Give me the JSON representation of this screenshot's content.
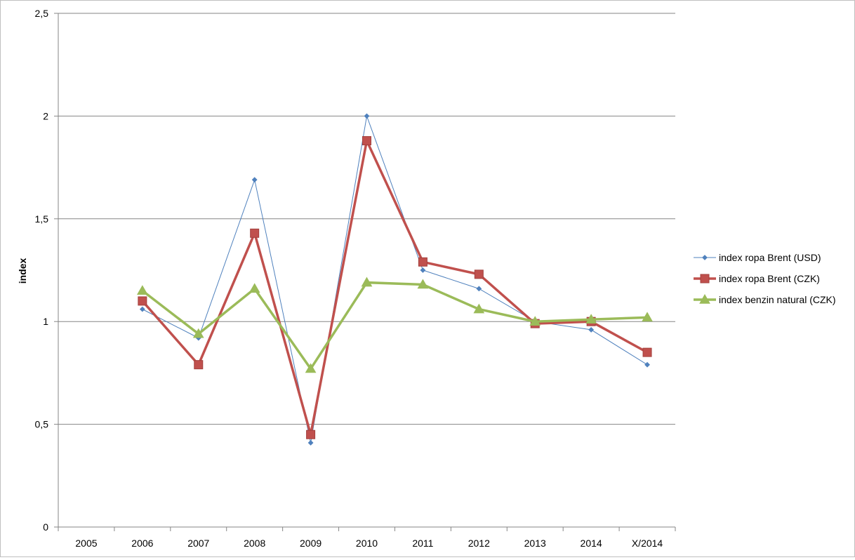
{
  "chart_data": {
    "type": "line",
    "title": "",
    "xlabel": "",
    "ylabel": "index",
    "ylim": [
      0,
      2.5
    ],
    "y_ticks": [
      {
        "value": 0,
        "label": "0"
      },
      {
        "value": 0.5,
        "label": "0,5"
      },
      {
        "value": 1,
        "label": "1"
      },
      {
        "value": 1.5,
        "label": "1,5"
      },
      {
        "value": 2,
        "label": "2"
      },
      {
        "value": 2.5,
        "label": "2,5"
      }
    ],
    "grid": true,
    "legend_position": "right",
    "categories": [
      "2005",
      "2006",
      "2007",
      "2008",
      "2009",
      "2010",
      "2011",
      "2012",
      "2013",
      "2014",
      "X/2014"
    ],
    "series": [
      {
        "name": "index ropa Brent (USD)",
        "color": "#4f81bd",
        "marker": "diamond",
        "values": [
          null,
          1.06,
          0.92,
          1.69,
          0.41,
          2.0,
          1.25,
          1.16,
          1.0,
          0.96,
          0.79
        ]
      },
      {
        "name": "index ropa Brent (CZK)",
        "color": "#c0504d",
        "marker": "square",
        "values": [
          null,
          1.1,
          0.79,
          1.43,
          0.45,
          1.88,
          1.29,
          1.23,
          0.99,
          1.0,
          0.85
        ]
      },
      {
        "name": "index benzin natural (CZK)",
        "color": "#9bbb59",
        "marker": "triangle",
        "values": [
          null,
          1.15,
          0.94,
          1.16,
          0.77,
          1.19,
          1.18,
          1.06,
          1.0,
          1.01,
          1.02
        ]
      }
    ]
  }
}
